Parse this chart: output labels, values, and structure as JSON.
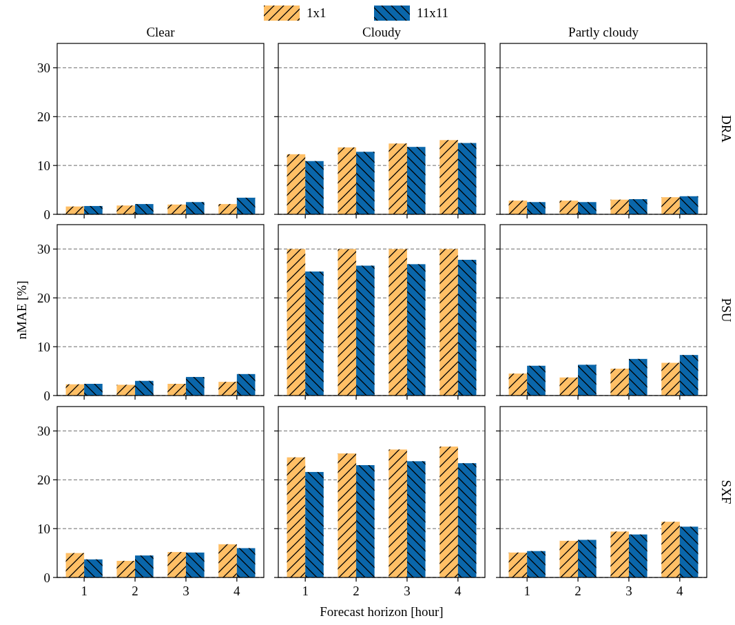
{
  "chart_data": [
    {
      "type": "bar",
      "title": "Clear",
      "categories": [
        "1",
        "2",
        "3",
        "4"
      ],
      "ylim": [
        0,
        35
      ],
      "yticks": [
        0,
        10,
        20,
        30
      ],
      "grid": "y",
      "tick_labels": "y",
      "series": [
        {
          "color": "#ffbf66",
          "values": [
            1.6,
            1.8,
            2.0,
            2.1
          ]
        },
        {
          "color": "#0a66aa",
          "values": [
            1.7,
            2.1,
            2.5,
            3.4
          ]
        }
      ]
    },
    {
      "type": "bar",
      "title": "Cloudy",
      "categories": [
        "1",
        "2",
        "3",
        "4"
      ],
      "ylim": [
        0,
        35
      ],
      "yticks": [
        0,
        10,
        20,
        30
      ],
      "grid": "y",
      "tick_labels": false,
      "legend": "top",
      "series": [
        {
          "name": "1x1",
          "color": "#ffbf66",
          "values": [
            12.3,
            13.7,
            14.5,
            15.2
          ]
        },
        {
          "name": "11x11",
          "color": "#0a66aa",
          "values": [
            10.9,
            12.8,
            13.8,
            14.6
          ]
        }
      ]
    },
    {
      "type": "bar",
      "title": "Partly cloudy",
      "y2label": "DRA",
      "categories": [
        "1",
        "2",
        "3",
        "4"
      ],
      "ylim": [
        0,
        35
      ],
      "yticks": [
        0,
        10,
        20,
        30
      ],
      "grid": "y",
      "tick_labels": false,
      "series": [
        {
          "color": "#ffbf66",
          "values": [
            2.8,
            2.8,
            3.0,
            3.5
          ]
        },
        {
          "color": "#0a66aa",
          "values": [
            2.5,
            2.5,
            3.1,
            3.7
          ]
        }
      ]
    },
    {
      "type": "bar",
      "ylabel": "nMAE [%]",
      "categories": [
        "1",
        "2",
        "3",
        "4"
      ],
      "ylim": [
        0,
        35
      ],
      "yticks": [
        0,
        10,
        20,
        30
      ],
      "grid": "y",
      "tick_labels": "y",
      "series": [
        {
          "color": "#ffbf66",
          "values": [
            2.3,
            2.2,
            2.4,
            2.8
          ]
        },
        {
          "color": "#0a66aa",
          "values": [
            2.4,
            3.0,
            3.8,
            4.4
          ]
        }
      ]
    },
    {
      "type": "bar",
      "categories": [
        "1",
        "2",
        "3",
        "4"
      ],
      "ylim": [
        0,
        35
      ],
      "yticks": [
        0,
        10,
        20,
        30
      ],
      "grid": "y",
      "tick_labels": false,
      "series": [
        {
          "color": "#ffbf66",
          "values": [
            30.0,
            30.0,
            30.0,
            30.0
          ]
        },
        {
          "color": "#0a66aa",
          "values": [
            25.4,
            26.6,
            26.9,
            27.8
          ]
        }
      ]
    },
    {
      "type": "bar",
      "y2label": "PSU",
      "categories": [
        "1",
        "2",
        "3",
        "4"
      ],
      "ylim": [
        0,
        35
      ],
      "yticks": [
        0,
        10,
        20,
        30
      ],
      "grid": "y",
      "tick_labels": false,
      "series": [
        {
          "color": "#ffbf66",
          "values": [
            4.5,
            3.7,
            5.5,
            6.7
          ]
        },
        {
          "color": "#0a66aa",
          "values": [
            6.1,
            6.3,
            7.5,
            8.3
          ]
        }
      ]
    },
    {
      "type": "bar",
      "categories": [
        "1",
        "2",
        "3",
        "4"
      ],
      "ylim": [
        0,
        35
      ],
      "yticks": [
        0,
        10,
        20,
        30
      ],
      "grid": "y",
      "series": [
        {
          "color": "#ffbf66",
          "values": [
            5.0,
            3.4,
            5.2,
            6.8
          ]
        },
        {
          "color": "#0a66aa",
          "values": [
            3.7,
            4.5,
            5.1,
            6.0
          ]
        }
      ]
    },
    {
      "type": "bar",
      "xlabel": "Forecast horizon [hour]",
      "categories": [
        "1",
        "2",
        "3",
        "4"
      ],
      "ylim": [
        0,
        35
      ],
      "yticks": [
        0,
        10,
        20,
        30
      ],
      "grid": "y",
      "tick_labels": "x",
      "series": [
        {
          "color": "#ffbf66",
          "values": [
            24.6,
            25.4,
            26.2,
            26.8
          ]
        },
        {
          "color": "#0a66aa",
          "values": [
            21.6,
            23.0,
            23.8,
            23.4
          ]
        }
      ]
    },
    {
      "type": "bar",
      "y2label": "SXF",
      "categories": [
        "1",
        "2",
        "3",
        "4"
      ],
      "ylim": [
        0,
        35
      ],
      "yticks": [
        0,
        10,
        20,
        30
      ],
      "grid": "y",
      "tick_labels": "x",
      "series": [
        {
          "color": "#ffbf66",
          "values": [
            5.1,
            7.5,
            9.4,
            11.4
          ]
        },
        {
          "color": "#0a66aa",
          "values": [
            5.4,
            7.7,
            8.8,
            10.4
          ]
        }
      ]
    }
  ]
}
